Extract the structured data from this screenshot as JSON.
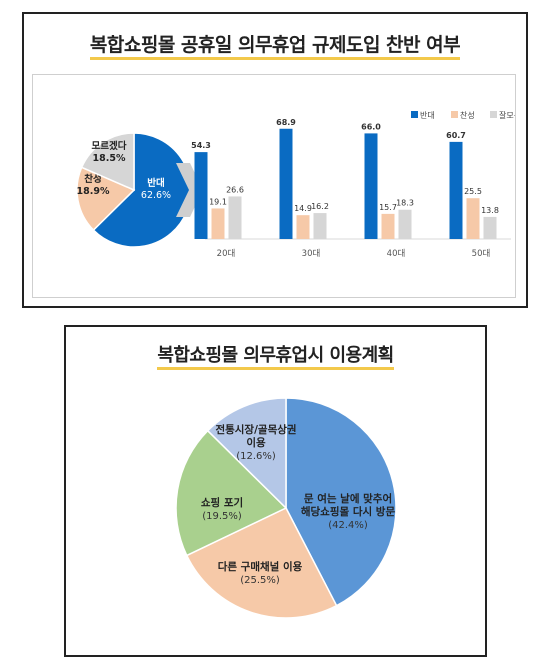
{
  "chart_data": [
    {
      "type": "pie",
      "title": "복합쇼핑몰 공휴일 의무휴업 규제도입 찬반 여부",
      "slices": [
        {
          "label": "반대",
          "value": 62.6,
          "value_label": "62.6%",
          "color": "#0a6bc2"
        },
        {
          "label": "찬성",
          "value": 18.9,
          "value_label": "18.9%",
          "color": "#f6c9a8"
        },
        {
          "label": "모르겠다",
          "value": 18.5,
          "value_label": "18.5%",
          "color": "#d6d6d6"
        }
      ]
    },
    {
      "type": "bar",
      "categories": [
        "20대",
        "30대",
        "40대",
        "50대"
      ],
      "series": [
        {
          "name": "반대",
          "values": [
            54.3,
            68.9,
            66.0,
            60.7
          ],
          "labels": [
            "54.3",
            "68.9",
            "66.0",
            "60.7"
          ],
          "color": "#0a6bc2"
        },
        {
          "name": "찬성",
          "values": [
            19.1,
            14.9,
            15.7,
            25.5
          ],
          "labels": [
            "19.1",
            "14.9",
            "15.7",
            "25.5"
          ],
          "color": "#f6c9a8"
        },
        {
          "name": "잘모름",
          "values": [
            26.6,
            16.2,
            18.3,
            13.8
          ],
          "labels": [
            "26.6",
            "16.2",
            "18.3",
            "13.8"
          ],
          "color": "#d6d6d6"
        }
      ],
      "ylim": [
        0,
        75
      ],
      "grid": false,
      "legend": "top-right"
    },
    {
      "type": "pie",
      "title": "복합쇼핑몰 의무휴업시 이용계획",
      "slices": [
        {
          "label": "문 여는 날에 맞추어 해당쇼핑몰 다시 방문",
          "lines": [
            "문 여는 날에 맞추어",
            "해당쇼핑몰 다시 방문"
          ],
          "value": 42.4,
          "value_label": "(42.4%)",
          "color": "#5b96d6"
        },
        {
          "label": "다른 구매채널 이용",
          "lines": [
            "다른 구매채널 이용"
          ],
          "value": 25.5,
          "value_label": "(25.5%)",
          "color": "#f6c9a8"
        },
        {
          "label": "쇼핑 포기",
          "lines": [
            "쇼핑 포기"
          ],
          "value": 19.5,
          "value_label": "(19.5%)",
          "color": "#a9d08e"
        },
        {
          "label": "전통시장/골목상권 이용",
          "lines": [
            "전통시장/골목상권",
            "이용"
          ],
          "value": 12.6,
          "value_label": "(12.6%)",
          "color": "#b4c7e7"
        }
      ]
    }
  ]
}
